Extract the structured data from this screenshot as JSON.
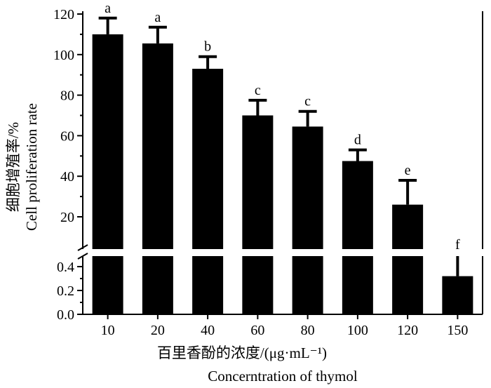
{
  "chart_data": {
    "type": "bar",
    "categories": [
      "10",
      "20",
      "40",
      "60",
      "80",
      "100",
      "120",
      "150"
    ],
    "values": [
      110,
      105.5,
      93,
      70,
      64.5,
      47.5,
      26,
      0.32
    ],
    "errors": [
      8,
      8,
      6,
      7.5,
      7.5,
      5.5,
      12,
      0.18
    ],
    "significance_letters": [
      "a",
      "a",
      "b",
      "c",
      "c",
      "d",
      "e",
      "f"
    ],
    "xlabel_cn": "百里香酚的浓度/(μg·mL⁻¹)",
    "xlabel_en": "Concerntration of thymol",
    "ylabel_cn": "细胞增殖率/%",
    "ylabel_en": "Cell proliferation rate",
    "y_axis_broken": true,
    "ylim_upper": [
      0,
      120
    ],
    "ylim_lower": [
      0,
      0.5
    ],
    "yticks_upper": [
      "20",
      "40",
      "60",
      "80",
      "100",
      "120"
    ],
    "yticks_lower": [
      "0.0",
      "0.2",
      "0.4"
    ],
    "grid": false,
    "bar_color": "#000000"
  }
}
